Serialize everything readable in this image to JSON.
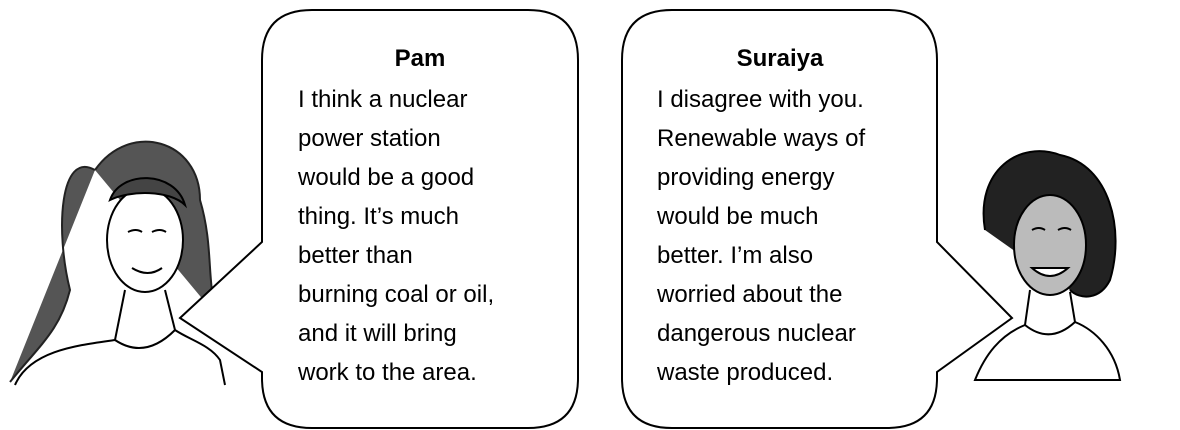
{
  "speakers": [
    {
      "name": "Pam",
      "lines": [
        "I think a nuclear",
        "power station",
        "would be a good",
        "thing. It’s much",
        "better than",
        "burning coal or oil,",
        "and it will bring",
        "work to the area."
      ]
    },
    {
      "name": "Suraiya",
      "lines": [
        "I disagree with you.",
        "Renewable ways of",
        "providing energy",
        "would be much",
        "better. I’m also",
        "worried about the",
        "dangerous nuclear",
        "waste produced."
      ]
    }
  ]
}
